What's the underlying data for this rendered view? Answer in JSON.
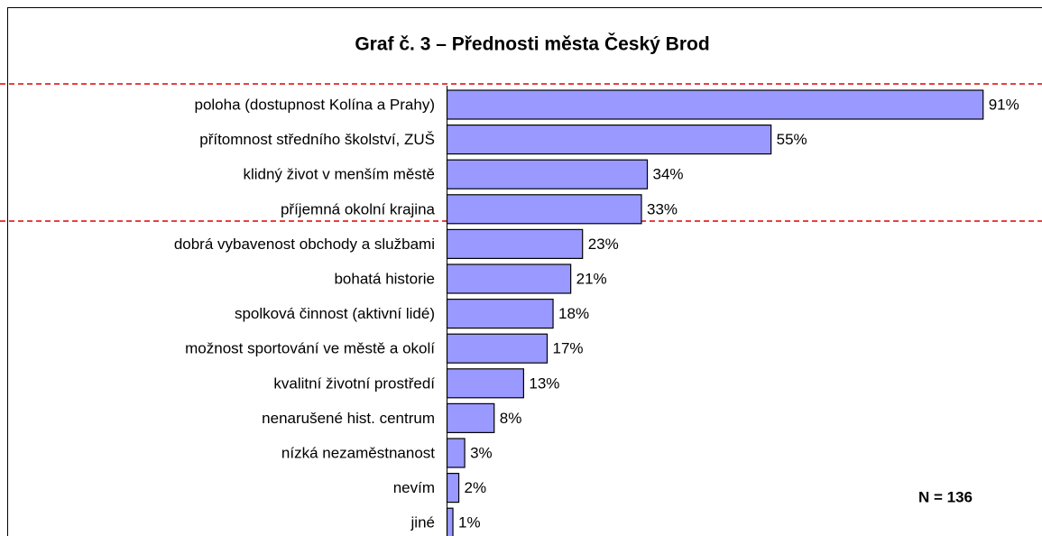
{
  "chart_data": {
    "type": "bar",
    "orientation": "horizontal",
    "title": "Graf č. 3 – Přednosti města Český Brod",
    "categories": [
      "poloha (dostupnost Kolína a Prahy)",
      "přítomnost středního školství, ZUŠ",
      "klidný život v menším městě",
      "příjemná okolní krajina",
      "dobrá vybavenost obchody a službami",
      "bohatá historie",
      "spolková činnost (aktivní lidé)",
      "možnost sportování ve městě a okolí",
      "kvalitní životní prostředí",
      "nenarušené hist. centrum",
      "nízká nezaměstnanost",
      "nevím",
      "jiné"
    ],
    "values": [
      91,
      55,
      34,
      33,
      23,
      21,
      18,
      17,
      13,
      8,
      3,
      2,
      1
    ],
    "value_labels": [
      "91%",
      "55%",
      "34%",
      "33%",
      "23%",
      "21%",
      "18%",
      "17%",
      "13%",
      "8%",
      "3%",
      "2%",
      "1%"
    ],
    "color": "#9999ff",
    "xlim": [
      0,
      100
    ],
    "annotation": "N = 136"
  }
}
